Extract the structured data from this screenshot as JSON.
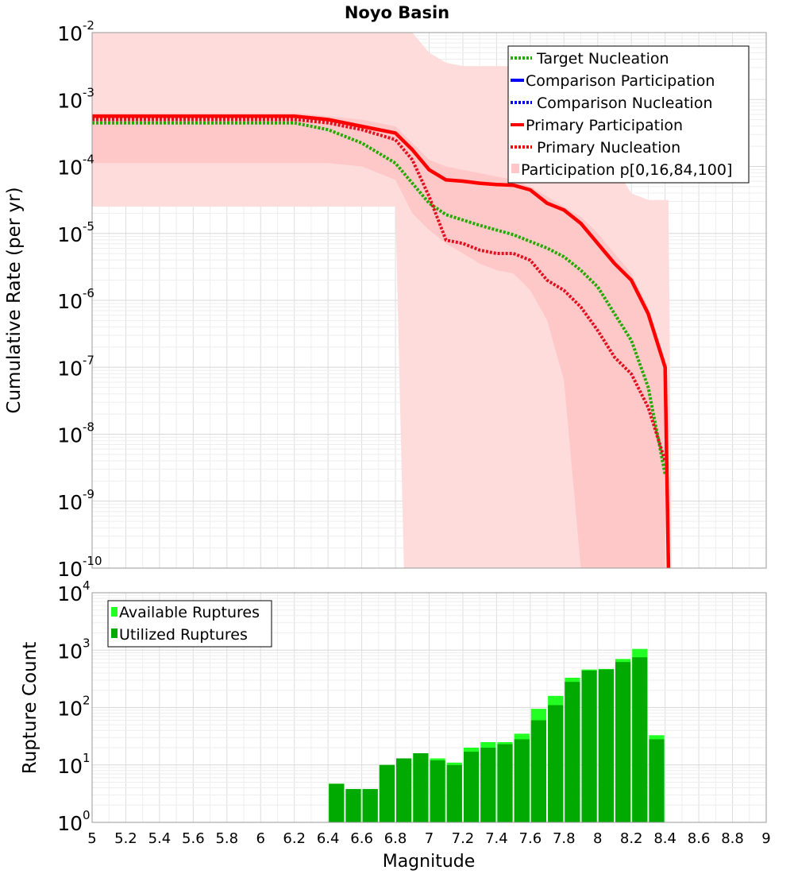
{
  "chart_data": [
    {
      "type": "line",
      "title": "Noyo Basin",
      "xlabel": "Magnitude",
      "ylabel": "Cumulative Rate (per yr)",
      "yscale": "log",
      "xlim": [
        5,
        9
      ],
      "ylim_exponents": [
        -10,
        -2
      ],
      "y_tick_base": "10",
      "y_tick_exponents": [
        "-10",
        "-9",
        "-8",
        "-7",
        "-6",
        "-5",
        "-4",
        "-3",
        "-2"
      ],
      "legend": [
        {
          "label": "Target Nucleation",
          "color": "#22aa00",
          "style": "dotted"
        },
        {
          "label": "Comparison Participation",
          "color": "#0000ff",
          "style": "solid"
        },
        {
          "label": "Comparison Nucleation",
          "color": "#0000ff",
          "style": "dotted"
        },
        {
          "label": "Primary Participation",
          "color": "#ff0000",
          "style": "solid"
        },
        {
          "label": "Primary Nucleation",
          "color": "#ff0000",
          "style": "dotted"
        },
        {
          "label": "Participation p[0,16,84,100]",
          "color": "#ffc8c8",
          "style": "band"
        }
      ],
      "legend_position": "top-right",
      "series": [
        {
          "name": "Target Nucleation",
          "color": "#22aa00",
          "dash": "dotted",
          "x": [
            5.0,
            6.2,
            6.4,
            6.5,
            6.6,
            6.8,
            6.9,
            7.0,
            7.1,
            7.2,
            7.3,
            7.4,
            7.5,
            7.6,
            7.7,
            7.8,
            7.9,
            8.0,
            8.1,
            8.2,
            8.3,
            8.4
          ],
          "log10_y": [
            -3.35,
            -3.35,
            -3.45,
            -3.55,
            -3.65,
            -3.95,
            -4.25,
            -4.55,
            -4.72,
            -4.8,
            -4.88,
            -4.95,
            -5.02,
            -5.12,
            -5.22,
            -5.35,
            -5.55,
            -5.8,
            -6.2,
            -6.6,
            -7.3,
            -8.6
          ]
        },
        {
          "name": "Primary Participation",
          "color": "#ff0000",
          "dash": "solid",
          "x": [
            5.0,
            6.2,
            6.4,
            6.5,
            6.6,
            6.8,
            6.9,
            7.0,
            7.1,
            7.2,
            7.3,
            7.4,
            7.5,
            7.6,
            7.7,
            7.8,
            7.9,
            8.0,
            8.1,
            8.2,
            8.3,
            8.4,
            8.42
          ],
          "log10_y": [
            -3.25,
            -3.25,
            -3.3,
            -3.35,
            -3.4,
            -3.5,
            -3.75,
            -4.05,
            -4.2,
            -4.22,
            -4.25,
            -4.27,
            -4.28,
            -4.35,
            -4.55,
            -4.65,
            -4.85,
            -5.15,
            -5.45,
            -5.7,
            -6.2,
            -7.0,
            -10.0
          ]
        },
        {
          "name": "Primary Nucleation",
          "color": "#e01020",
          "dash": "dotted",
          "x": [
            5.0,
            6.2,
            6.4,
            6.5,
            6.6,
            6.8,
            6.9,
            7.0,
            7.1,
            7.2,
            7.3,
            7.4,
            7.5,
            7.6,
            7.7,
            7.8,
            7.9,
            8.0,
            8.1,
            8.2,
            8.3,
            8.4
          ],
          "log10_y": [
            -3.3,
            -3.3,
            -3.35,
            -3.4,
            -3.45,
            -3.6,
            -3.9,
            -4.45,
            -5.1,
            -5.15,
            -5.25,
            -5.3,
            -5.3,
            -5.4,
            -5.7,
            -5.85,
            -6.1,
            -6.45,
            -6.85,
            -7.1,
            -7.6,
            -8.4
          ]
        }
      ],
      "bands": [
        {
          "name": "Participation p[0,100]",
          "color": "#ffdcdc",
          "x": [
            5.0,
            6.8,
            6.85,
            6.9,
            7.0,
            7.1,
            7.2,
            7.3,
            7.5,
            7.6,
            7.7,
            7.8,
            8.0,
            8.1,
            8.2,
            8.3,
            8.42,
            8.44
          ],
          "log10_upper": [
            -2.0,
            -2.0,
            -2.0,
            -2.0,
            -2.3,
            -2.45,
            -2.5,
            -2.5,
            -2.5,
            -2.6,
            -2.9,
            -3.3,
            -3.7,
            -4.0,
            -4.4,
            -4.5,
            -4.5,
            -10.0
          ],
          "log10_lower": [
            -4.6,
            -4.6,
            -10.0,
            -10.0,
            -10.0,
            -10.0,
            -10.0,
            -10.0,
            -10.0,
            -10.0,
            -10.0,
            -10.0,
            -10.0,
            -10.0,
            -10.0,
            -10.0,
            -10.0,
            -10.0
          ]
        },
        {
          "name": "Participation p[16,84]",
          "color": "#ffc8c8",
          "x": [
            5.0,
            6.2,
            6.4,
            6.6,
            6.8,
            6.9,
            7.0,
            7.1,
            7.2,
            7.3,
            7.4,
            7.5,
            7.6,
            7.7,
            7.8,
            7.9,
            8.0,
            8.1,
            8.2,
            8.3,
            8.4
          ],
          "log10_upper": [
            -3.2,
            -3.2,
            -3.25,
            -3.3,
            -3.4,
            -3.65,
            -3.9,
            -4.0,
            -4.05,
            -4.1,
            -4.15,
            -4.2,
            -4.3,
            -4.45,
            -4.6,
            -4.75,
            -5.0,
            -5.3,
            -5.6,
            -6.1,
            -6.9
          ],
          "log10_lower": [
            -3.95,
            -3.95,
            -3.95,
            -4.0,
            -4.2,
            -4.7,
            -4.95,
            -5.15,
            -5.3,
            -5.45,
            -5.55,
            -5.6,
            -5.85,
            -6.3,
            -7.2,
            -10.0,
            -10.0,
            -10.0,
            -10.0,
            -10.0,
            -10.0
          ]
        }
      ]
    },
    {
      "type": "bar",
      "ylabel": "Rupture Count",
      "xlabel": "Magnitude",
      "yscale": "log",
      "ylim_exponents": [
        0,
        4
      ],
      "y_tick_base": "10",
      "y_tick_exponents": [
        "0",
        "1",
        "2",
        "3",
        "4"
      ],
      "x_ticks": [
        "5",
        "5.2",
        "5.4",
        "5.6",
        "5.8",
        "6",
        "6.2",
        "6.4",
        "6.6",
        "6.8",
        "7",
        "7.2",
        "7.4",
        "7.6",
        "7.8",
        "8",
        "8.2",
        "8.4",
        "8.6",
        "8.8",
        "9"
      ],
      "legend": [
        {
          "label": "Available Ruptures",
          "color": "#22ff22"
        },
        {
          "label": "Utilized Ruptures",
          "color": "#00aa00"
        }
      ],
      "legend_position": "top-left",
      "bin_width": 0.1,
      "bin_starts": [
        6.4,
        6.5,
        6.6,
        6.7,
        6.8,
        6.9,
        7.0,
        7.1,
        7.2,
        7.3,
        7.4,
        7.5,
        7.6,
        7.7,
        7.8,
        7.9,
        8.0,
        8.1,
        8.2,
        8.3
      ],
      "series": [
        {
          "name": "Available Ruptures",
          "color": "#22ff22",
          "values": [
            4.7,
            3.8,
            3.8,
            10,
            13,
            16,
            13,
            11,
            20,
            25,
            25,
            35,
            95,
            160,
            330,
            460,
            470,
            700,
            1050,
            33
          ]
        },
        {
          "name": "Utilized Ruptures",
          "color": "#00aa00",
          "values": [
            4.7,
            3.8,
            3.8,
            10,
            13,
            16,
            12,
            10,
            17,
            20,
            23,
            28,
            60,
            110,
            280,
            440,
            460,
            620,
            750,
            28
          ]
        }
      ]
    }
  ]
}
